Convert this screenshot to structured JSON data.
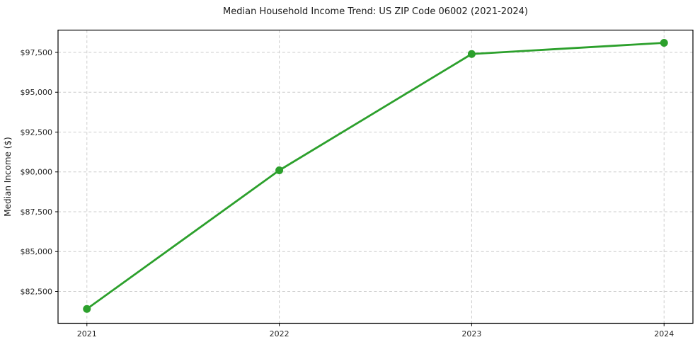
{
  "title": "Median Household Income Trend: US ZIP Code 06002 (2021-2024)",
  "chart_data": {
    "type": "line",
    "title": "Median Household Income Trend: US ZIP Code 06002 (2021-2024)",
    "series_name": "Median Household Income",
    "categories": [
      "2021",
      "2022",
      "2023",
      "2024"
    ],
    "values": [
      81400,
      90100,
      97400,
      98100
    ],
    "xlabel": "",
    "ylabel": "Median Income ($)",
    "ylim": [
      80500,
      98900
    ],
    "yticks": [
      82500,
      85000,
      87500,
      90000,
      92500,
      95000,
      97500
    ],
    "ytick_labels": [
      "$82,500",
      "$85,000",
      "$87,500",
      "$90,000",
      "$92,500",
      "$95,000",
      "$97,500"
    ],
    "grid": true,
    "grid_style": "dashed",
    "legend_position": "none",
    "line_color": "#2ca02c",
    "marker": "circle",
    "background_color": "#ffffff",
    "grid_color": "#cccccc",
    "text_color": "#262626"
  }
}
